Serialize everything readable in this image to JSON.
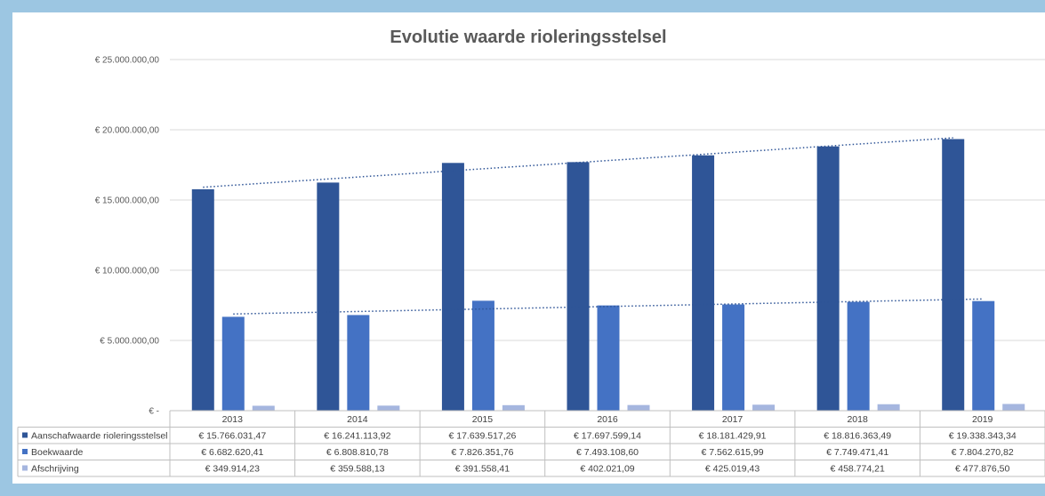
{
  "chart_data": {
    "type": "bar",
    "title": "Evolutie waarde rioleringsstelsel",
    "categories": [
      "2013",
      "2014",
      "2015",
      "2016",
      "2017",
      "2018",
      "2019"
    ],
    "ylim": [
      0,
      25000000
    ],
    "grid": true,
    "legend": "data-table",
    "y_ticks": [
      {
        "value": 0,
        "label": "€ -"
      },
      {
        "value": 5000000,
        "label": "€ 5.000.000,00"
      },
      {
        "value": 10000000,
        "label": "€ 10.000.000,00"
      },
      {
        "value": 15000000,
        "label": "€ 15.000.000,00"
      },
      {
        "value": 20000000,
        "label": "€ 20.000.000,00"
      },
      {
        "value": 25000000,
        "label": "€ 25.000.000,00"
      }
    ],
    "series": [
      {
        "name": "Aanschafwaarde rioleringsstelsel",
        "color": "#2f5597",
        "trendline": true,
        "values": [
          15766031.47,
          16241113.92,
          17639517.26,
          17697599.14,
          18181429.91,
          18816363.49,
          19338343.34
        ],
        "labels": [
          "€ 15.766.031,47",
          "€ 16.241.113,92",
          "€ 17.639.517,26",
          "€ 17.697.599,14",
          "€ 18.181.429,91",
          "€ 18.816.363,49",
          "€ 19.338.343,34"
        ]
      },
      {
        "name": "Boekwaarde",
        "color": "#4472c4",
        "trendline": true,
        "values": [
          6682620.41,
          6808810.78,
          7826351.76,
          7493108.6,
          7562615.99,
          7749471.41,
          7804270.82
        ],
        "labels": [
          "€ 6.682.620,41",
          "€ 6.808.810,78",
          "€ 7.826.351,76",
          "€ 7.493.108,60",
          "€ 7.562.615,99",
          "€ 7.749.471,41",
          "€ 7.804.270,82"
        ]
      },
      {
        "name": "Afschrijving",
        "color": "#a5b6df",
        "trendline": false,
        "values": [
          349914.23,
          359588.13,
          391558.41,
          402021.09,
          425019.43,
          458774.21,
          477876.5
        ],
        "labels": [
          "€ 349.914,23",
          "€ 359.588,13",
          "€ 391.558,41",
          "€ 402.021,09",
          "€ 425.019,43",
          "€ 458.774,21",
          "€ 477.876,50"
        ]
      }
    ],
    "colors": {
      "gridline": "#d9d9d9",
      "trendline": "#2f5597",
      "table_border": "#bfbfbf"
    }
  }
}
